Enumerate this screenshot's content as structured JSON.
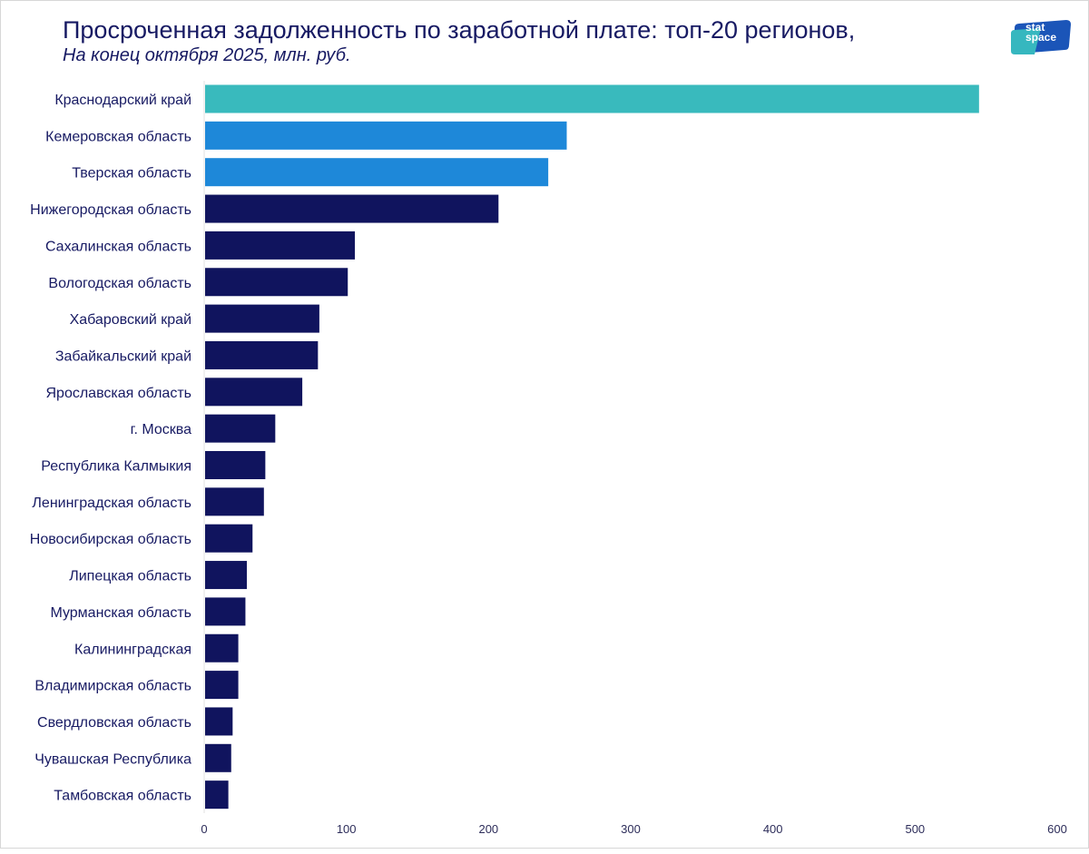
{
  "header": {
    "title": "Просроченная задолженность по заработной плате: топ-20 регионов,",
    "subtitle": "На конец октября 2025, млн. руб."
  },
  "logo": {
    "line1": "stat",
    "line2": "space"
  },
  "colors": {
    "primary": "#10145e",
    "secondary": "#1e88d9",
    "highlight": "#39babd",
    "text": "#171a63",
    "axis_text": "#2d2d5a"
  },
  "chart_data": {
    "type": "bar",
    "orientation": "horizontal",
    "title": "Просроченная задолженность по заработной плате: топ-20 регионов,",
    "subtitle": "На конец октября 2025, млн. руб.",
    "xlim": [
      0,
      600
    ],
    "xticks": [
      0,
      100,
      200,
      300,
      400,
      500,
      600
    ],
    "categories": [
      "Краснодарский край",
      "Кемеровская область",
      "Тверская область",
      "Нижегородская область",
      "Сахалинская область",
      "Вологодская область",
      "Хабаровский край",
      "Забайкальский край",
      "Ярославская область",
      "г. Москва",
      "Республика Калмыкия",
      "Ленинградская область",
      "Новосибирская область",
      "Липецкая область",
      "Мурманская область",
      "Калининградская",
      "Владимирская область",
      "Свердловская область",
      "Чувашская Республика",
      "Тамбовская область"
    ],
    "values": [
      545,
      255,
      242,
      207,
      106,
      101,
      81,
      80,
      69,
      50,
      43,
      42,
      34,
      30,
      29,
      24,
      24,
      20,
      19,
      17
    ],
    "bar_colors": [
      "#39babd",
      "#1e88d9",
      "#1e88d9",
      "#10145e",
      "#10145e",
      "#10145e",
      "#10145e",
      "#10145e",
      "#10145e",
      "#10145e",
      "#10145e",
      "#10145e",
      "#10145e",
      "#10145e",
      "#10145e",
      "#10145e",
      "#10145e",
      "#10145e",
      "#10145e",
      "#10145e"
    ],
    "grid": false,
    "legend": "none"
  }
}
